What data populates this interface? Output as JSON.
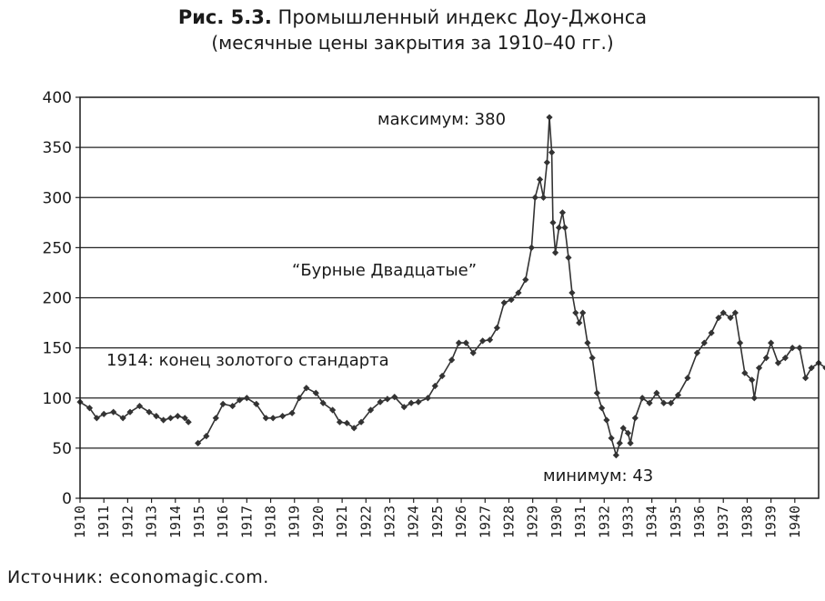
{
  "header": {
    "title_bold": "Рис. 5.3.",
    "title_rest": "Промышленный индекс Доу-Джонса",
    "subtitle": "(месячные цены закрытия за 1910–40 гг.)"
  },
  "source": "Источник: economagic.com.",
  "chart_data": {
    "type": "line",
    "title": "Промышленный индекс Доу-Джонса",
    "subtitle": "(месячные цены закрытия за 1910–40 гг.)",
    "xlabel": "",
    "ylabel": "",
    "ylim": [
      0,
      400
    ],
    "xlim": [
      1910,
      1941
    ],
    "yticks": [
      0,
      50,
      100,
      150,
      200,
      250,
      300,
      350,
      400
    ],
    "xticks": [
      "1910",
      "1911",
      "1912",
      "1913",
      "1914",
      "1915",
      "1916",
      "1917",
      "1918",
      "1919",
      "1920",
      "1921",
      "1922",
      "1923",
      "1924",
      "1925",
      "1926",
      "1927",
      "1928",
      "1929",
      "1930",
      "1931",
      "1932",
      "1933",
      "1934",
      "1935",
      "1936",
      "1937",
      "1938",
      "1939",
      "1940"
    ],
    "grid": "horizontal",
    "line_color": "#333333",
    "marker": "diamond",
    "annotations": [
      {
        "text": "максимум: 380",
        "x": 1929.7,
        "y": 380
      },
      {
        "text": "“Бурные Двадцатые”",
        "x": 1928,
        "y": 230
      },
      {
        "text": "1914: конец золотого стандарта",
        "x": 1914,
        "y": 140
      },
      {
        "text": "минимум: 43",
        "x": 1932.5,
        "y": 43
      }
    ],
    "series": [
      {
        "name": "",
        "segments": [
          [
            [
              1910.0,
              96
            ],
            [
              1910.4,
              90
            ],
            [
              1910.7,
              80
            ],
            [
              1911.0,
              84
            ],
            [
              1911.4,
              86
            ],
            [
              1911.8,
              80
            ],
            [
              1912.1,
              86
            ],
            [
              1912.5,
              92
            ],
            [
              1912.9,
              86
            ],
            [
              1913.2,
              82
            ],
            [
              1913.5,
              78
            ],
            [
              1913.8,
              80
            ],
            [
              1914.1,
              82
            ],
            [
              1914.4,
              80
            ],
            [
              1914.55,
              76
            ]
          ],
          [
            [
              1914.95,
              55
            ],
            [
              1915.3,
              62
            ],
            [
              1915.7,
              80
            ],
            [
              1916.0,
              94
            ],
            [
              1916.4,
              92
            ],
            [
              1916.7,
              98
            ],
            [
              1917.0,
              100
            ],
            [
              1917.4,
              94
            ],
            [
              1917.8,
              80
            ],
            [
              1918.1,
              80
            ],
            [
              1918.5,
              82
            ],
            [
              1918.9,
              85
            ],
            [
              1919.2,
              100
            ],
            [
              1919.5,
              110
            ],
            [
              1919.9,
              105
            ],
            [
              1920.2,
              95
            ],
            [
              1920.6,
              88
            ],
            [
              1920.9,
              76
            ],
            [
              1921.2,
              75
            ],
            [
              1921.5,
              70
            ],
            [
              1921.8,
              76
            ],
            [
              1922.2,
              88
            ],
            [
              1922.6,
              96
            ],
            [
              1922.9,
              99
            ],
            [
              1923.2,
              101
            ],
            [
              1923.6,
              91
            ],
            [
              1923.9,
              95
            ],
            [
              1924.2,
              96
            ],
            [
              1924.6,
              100
            ],
            [
              1924.9,
              112
            ],
            [
              1925.2,
              122
            ],
            [
              1925.6,
              138
            ],
            [
              1925.9,
              155
            ],
            [
              1926.2,
              155
            ],
            [
              1926.5,
              145
            ],
            [
              1926.9,
              157
            ],
            [
              1927.2,
              158
            ],
            [
              1927.5,
              170
            ],
            [
              1927.8,
              195
            ],
            [
              1928.1,
              198
            ],
            [
              1928.4,
              205
            ],
            [
              1928.7,
              218
            ],
            [
              1928.95,
              250
            ],
            [
              1929.1,
              300
            ],
            [
              1929.3,
              318
            ],
            [
              1929.45,
              300
            ],
            [
              1929.6,
              335
            ],
            [
              1929.7,
              380
            ],
            [
              1929.8,
              345
            ],
            [
              1929.85,
              275
            ],
            [
              1929.95,
              245
            ],
            [
              1930.1,
              270
            ],
            [
              1930.25,
              285
            ],
            [
              1930.35,
              270
            ],
            [
              1930.5,
              240
            ],
            [
              1930.65,
              205
            ],
            [
              1930.8,
              185
            ],
            [
              1930.95,
              175
            ],
            [
              1931.1,
              185
            ],
            [
              1931.3,
              155
            ],
            [
              1931.5,
              140
            ],
            [
              1931.7,
              105
            ],
            [
              1931.9,
              90
            ],
            [
              1932.1,
              78
            ],
            [
              1932.3,
              60
            ],
            [
              1932.5,
              43
            ],
            [
              1932.65,
              55
            ],
            [
              1932.8,
              70
            ],
            [
              1933.0,
              65
            ],
            [
              1933.1,
              55
            ],
            [
              1933.3,
              80
            ],
            [
              1933.6,
              100
            ],
            [
              1933.9,
              95
            ],
            [
              1934.2,
              105
            ],
            [
              1934.5,
              95
            ],
            [
              1934.8,
              95
            ],
            [
              1935.1,
              103
            ],
            [
              1935.5,
              120
            ],
            [
              1935.9,
              145
            ],
            [
              1936.2,
              155
            ],
            [
              1936.5,
              165
            ],
            [
              1936.8,
              180
            ],
            [
              1937.0,
              185
            ],
            [
              1937.3,
              180
            ],
            [
              1937.5,
              185
            ],
            [
              1937.7,
              155
            ],
            [
              1937.9,
              125
            ],
            [
              1938.2,
              118
            ],
            [
              1938.3,
              100
            ],
            [
              1938.5,
              130
            ],
            [
              1938.8,
              140
            ],
            [
              1939.0,
              155
            ],
            [
              1939.3,
              135
            ],
            [
              1939.6,
              140
            ],
            [
              1939.9,
              150
            ],
            [
              1940.2,
              150
            ],
            [
              1940.45,
              120
            ],
            [
              1940.7,
              130
            ],
            [
              1941.0,
              135
            ],
            [
              1941.3,
              130
            ]
          ]
        ]
      }
    ]
  }
}
